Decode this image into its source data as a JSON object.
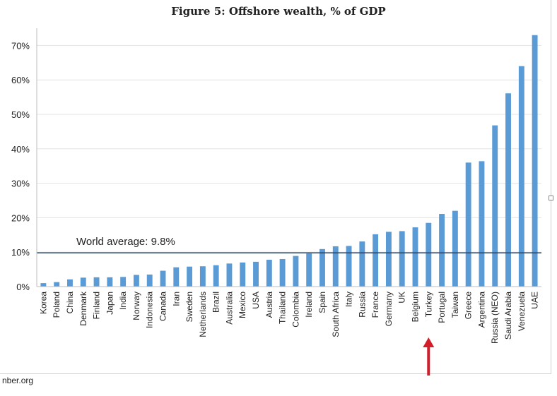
{
  "title": "Figure 5: Offshore wealth, % of GDP",
  "source": "nber.org",
  "chart_data": {
    "type": "bar",
    "categories": [
      "Korea",
      "Poland",
      "China",
      "Denmark",
      "Finland",
      "Japan",
      "India",
      "Norway",
      "Indonesia",
      "Canada",
      "Iran",
      "Sweden",
      "Netherlands",
      "Brazil",
      "Australia",
      "Mexico",
      "USA",
      "Austria",
      "Thailand",
      "Colombia",
      "Ireland",
      "Spain",
      "South Africa",
      "Italy",
      "Russia",
      "France",
      "Germany",
      "UK",
      "Belgium",
      "Turkey",
      "Portugal",
      "Taiwan",
      "Greece",
      "Argentina",
      "Russia (NEO)",
      "Saudi Arabia",
      "Venezuela",
      "UAE"
    ],
    "values": [
      1.0,
      1.3,
      2.1,
      2.6,
      2.7,
      2.7,
      2.8,
      3.4,
      3.5,
      4.6,
      5.6,
      5.8,
      5.9,
      6.2,
      6.7,
      7.0,
      7.2,
      7.8,
      8.0,
      8.9,
      9.6,
      10.9,
      11.7,
      11.8,
      13.1,
      15.2,
      15.9,
      16.1,
      17.2,
      18.5,
      21.1,
      22.0,
      36.0,
      36.4,
      46.8,
      56.1,
      64.0,
      73.0
    ],
    "ylim": [
      0,
      75
    ],
    "yticks": [
      0,
      10,
      20,
      30,
      40,
      50,
      60,
      70
    ],
    "ytick_labels": [
      "0%",
      "10%",
      "20%",
      "30%",
      "40%",
      "50%",
      "60%",
      "70%"
    ],
    "reference_line": {
      "value": 9.8,
      "label": "World average: 9.8%",
      "color": "#1f3a5f"
    },
    "highlight": {
      "category": "Turkey",
      "marker": "up-arrow",
      "color": "#d11e2a"
    },
    "bar_color": "#5b9bd5",
    "grid": true
  }
}
